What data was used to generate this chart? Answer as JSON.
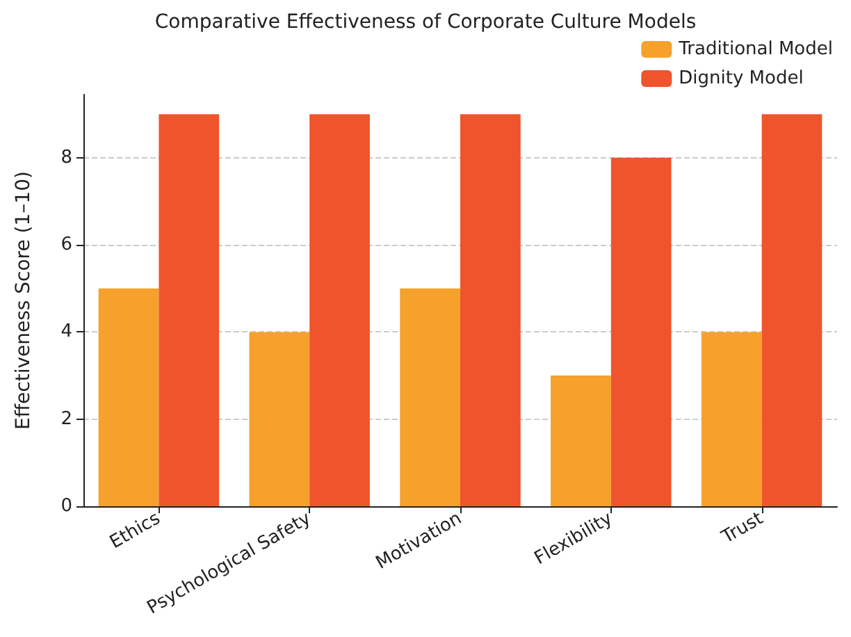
{
  "chart_data": {
    "type": "bar",
    "title": "Comparative Effectiveness of Corporate Culture Models",
    "ylabel": "Effectiveness Score (1–10)",
    "categories": [
      "Ethics",
      "Psychological Safety",
      "Motivation",
      "Flexibility",
      "Trust"
    ],
    "series": [
      {
        "name": "Traditional Model",
        "color": "#f5a12b",
        "values": [
          5,
          4,
          5,
          3,
          4
        ]
      },
      {
        "name": "Dignity Model",
        "color": "#f0542d",
        "values": [
          9,
          9,
          9,
          8,
          9
        ]
      }
    ],
    "ylim": [
      0,
      9.45
    ],
    "yticks": [
      0,
      2,
      4,
      6,
      8
    ],
    "grid": "y",
    "legend": "top right"
  }
}
